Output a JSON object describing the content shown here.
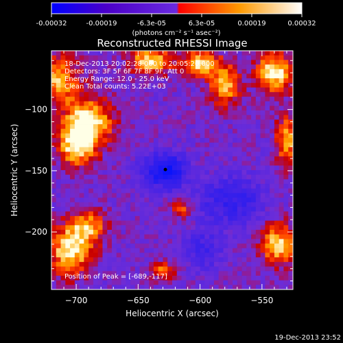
{
  "colorbar": {
    "tick_labels": [
      "-0.00032",
      "-0.00019",
      "-6.3e-05",
      "6.3e-05",
      "0.00019",
      "0.00032"
    ],
    "unit_label": "(photons cm⁻² s⁻¹ asec⁻²)",
    "range": [
      -0.00032,
      0.00032
    ],
    "colors": [
      "#0000ff",
      "#4b00c8",
      "#6a2ae0",
      "#ff0000",
      "#ff9900",
      "#ffffff"
    ]
  },
  "chart_data": {
    "type": "heatmap",
    "title": "Reconstructed RHESSI Image",
    "xlabel": "Heliocentric X (arcsec)",
    "ylabel": "Heliocentric Y (arcsec)",
    "xlim": [
      -720,
      -525
    ],
    "ylim": [
      -247,
      -52
    ],
    "x_ticks": [
      -700,
      -650,
      -600,
      -550
    ],
    "y_ticks": [
      -100,
      -150,
      -200
    ],
    "x_tick_labels": [
      "−700",
      "−650",
      "−600",
      "−550"
    ],
    "y_tick_labels": [
      "−100",
      "−150",
      "−200"
    ],
    "annotations": [
      "18-Dec-2013 20:02:28.000 to 20:05:20.000",
      "Detectors: 3F 5F 6F 7F 8F 9F, Att 0",
      "Energy Range: 12.0 - 25.0 keV",
      "Clean     Total counts: 5.22E+03"
    ],
    "peak_label": "Position of Peak = [-689,-117]",
    "peak_marker": [
      -628,
      -149
    ],
    "source_blobs": [
      {
        "x": -690,
        "y": -110,
        "sx": 14,
        "sy": 14,
        "amp": 1.0
      },
      {
        "x": -700,
        "y": -130,
        "sx": 10,
        "sy": 12,
        "amp": 0.9
      },
      {
        "x": -705,
        "y": -215,
        "sx": 12,
        "sy": 14,
        "amp": 1.0
      },
      {
        "x": -690,
        "y": -195,
        "sx": 10,
        "sy": 10,
        "amp": 0.7
      },
      {
        "x": -715,
        "y": -75,
        "sx": 12,
        "sy": 14,
        "amp": 0.8
      },
      {
        "x": -640,
        "y": -60,
        "sx": 12,
        "sy": 8,
        "amp": 0.9
      },
      {
        "x": -600,
        "y": -62,
        "sx": 10,
        "sy": 8,
        "amp": 0.9
      },
      {
        "x": -580,
        "y": -80,
        "sx": 8,
        "sy": 12,
        "amp": 0.9
      },
      {
        "x": -540,
        "y": -70,
        "sx": 10,
        "sy": 12,
        "amp": 1.0
      },
      {
        "x": -530,
        "y": -125,
        "sx": 6,
        "sy": 14,
        "amp": 0.8
      },
      {
        "x": -537,
        "y": -210,
        "sx": 10,
        "sy": 12,
        "amp": 0.9
      },
      {
        "x": -630,
        "y": -232,
        "sx": 6,
        "sy": 5,
        "amp": 0.7
      },
      {
        "x": -615,
        "y": -182,
        "sx": 6,
        "sy": 5,
        "amp": 0.6
      }
    ],
    "negative_blobs": [
      {
        "x": -628,
        "y": -150,
        "sx": 12,
        "sy": 10,
        "amp": 1.0
      },
      {
        "x": -575,
        "y": -175,
        "sx": 18,
        "sy": 14,
        "amp": 0.6
      },
      {
        "x": -598,
        "y": -215,
        "sx": 10,
        "sy": 10,
        "amp": 0.5
      }
    ]
  },
  "footer": {
    "timestamp": "19-Dec-2013 23:52"
  }
}
